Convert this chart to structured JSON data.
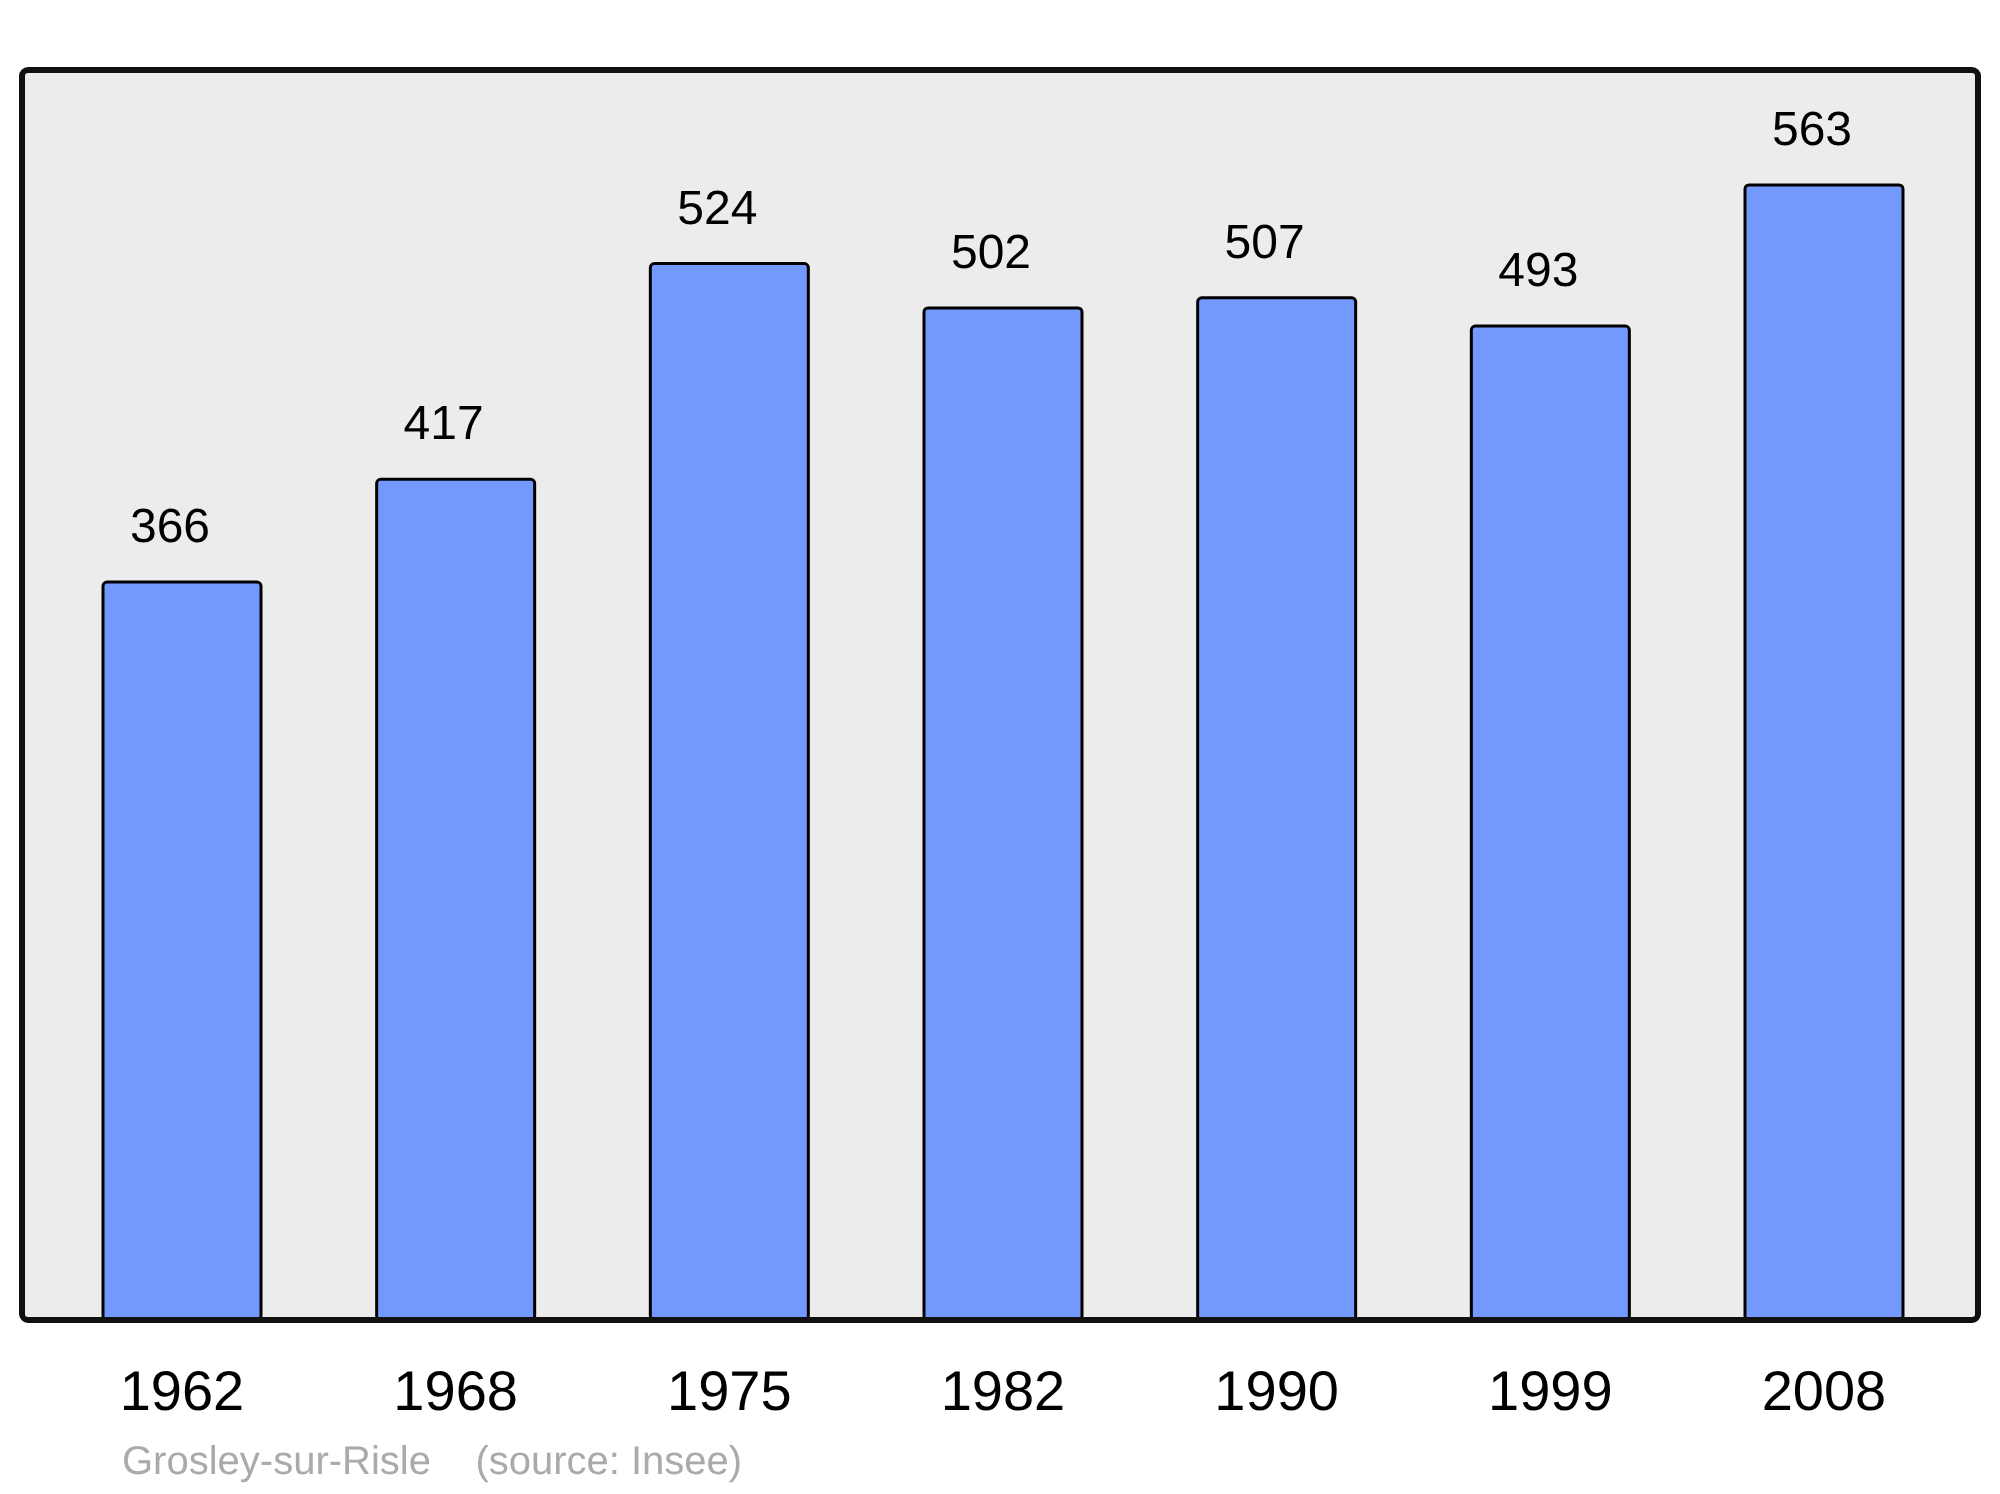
{
  "chart_data": {
    "type": "bar",
    "categories": [
      "1962",
      "1968",
      "1975",
      "1982",
      "1990",
      "1999",
      "2008"
    ],
    "values": [
      366,
      417,
      524,
      502,
      507,
      493,
      563
    ],
    "color": "#7399ff",
    "ylim": [
      0,
      620
    ],
    "data_labels": true,
    "annotations": [
      "Grosley-sur-Risle    (source: Insee)"
    ]
  }
}
